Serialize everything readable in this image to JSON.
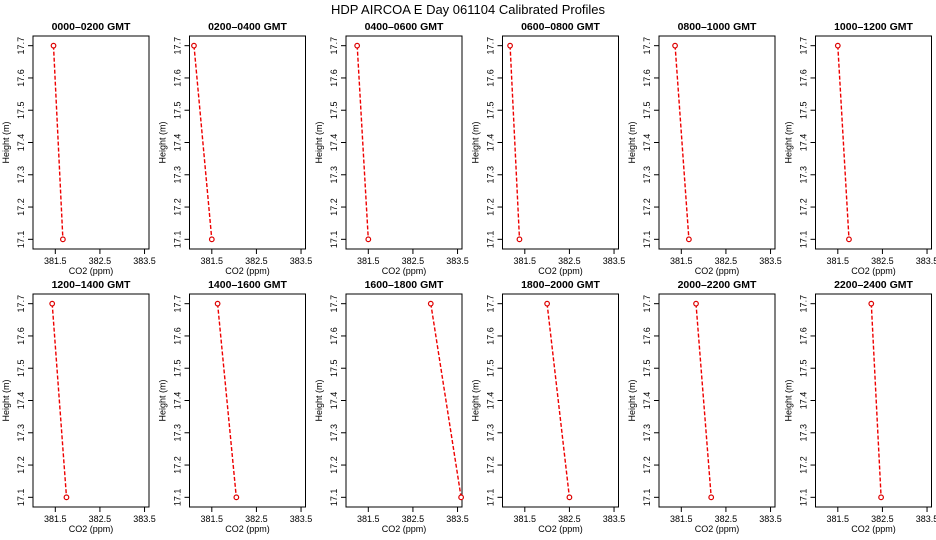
{
  "title": "HDP  AIRCOA E  Day 061104  Calibrated Profiles",
  "colors": {
    "series": "#ee0000",
    "marker": "#dd0000",
    "axes": "#000000"
  },
  "chart_data": [
    {
      "type": "line",
      "title": "0000–0200 GMT",
      "xlabel": "CO2 (ppm)",
      "ylabel": "Height (m)",
      "xlim": [
        381.0,
        383.6
      ],
      "ylim": [
        17.07,
        17.73
      ],
      "xticks": [
        381.5,
        382.5,
        383.5
      ],
      "xtick_labels": [
        "381.5",
        "382.5",
        "383.5"
      ],
      "yticks": [
        17.1,
        17.2,
        17.3,
        17.4,
        17.5,
        17.6,
        17.7
      ],
      "ytick_labels": [
        "17.1",
        "17.2",
        "17.3",
        "17.4",
        "17.5",
        "17.6",
        "17.7"
      ],
      "points": [
        {
          "x": 381.46,
          "y": 17.7
        },
        {
          "x": 381.67,
          "y": 17.1
        }
      ]
    },
    {
      "type": "line",
      "title": "0200–0400 GMT",
      "xlabel": "CO2 (ppm)",
      "ylabel": "Height (m)",
      "xlim": [
        381.0,
        383.6
      ],
      "ylim": [
        17.07,
        17.73
      ],
      "xticks": [
        381.5,
        382.5,
        383.5
      ],
      "xtick_labels": [
        "381.5",
        "382.5",
        "383.5"
      ],
      "yticks": [
        17.1,
        17.2,
        17.3,
        17.4,
        17.5,
        17.6,
        17.7
      ],
      "ytick_labels": [
        "17.1",
        "17.2",
        "17.3",
        "17.4",
        "17.5",
        "17.6",
        "17.7"
      ],
      "points": [
        {
          "x": 381.1,
          "y": 17.7
        },
        {
          "x": 381.5,
          "y": 17.1
        }
      ]
    },
    {
      "type": "line",
      "title": "0400–0600 GMT",
      "xlabel": "CO2 (ppm)",
      "ylabel": "Height (m)",
      "xlim": [
        381.0,
        383.6
      ],
      "ylim": [
        17.07,
        17.73
      ],
      "xticks": [
        381.5,
        382.5,
        383.5
      ],
      "xtick_labels": [
        "381.5",
        "382.5",
        "383.5"
      ],
      "yticks": [
        17.1,
        17.2,
        17.3,
        17.4,
        17.5,
        17.6,
        17.7
      ],
      "ytick_labels": [
        "17.1",
        "17.2",
        "17.3",
        "17.4",
        "17.5",
        "17.6",
        "17.7"
      ],
      "points": [
        {
          "x": 381.25,
          "y": 17.7
        },
        {
          "x": 381.5,
          "y": 17.1
        }
      ]
    },
    {
      "type": "line",
      "title": "0600–0800 GMT",
      "xlabel": "CO2 (ppm)",
      "ylabel": "Height (m)",
      "xlim": [
        381.0,
        383.6
      ],
      "ylim": [
        17.07,
        17.73
      ],
      "xticks": [
        381.5,
        382.5,
        383.5
      ],
      "xtick_labels": [
        "381.5",
        "382.5",
        "383.5"
      ],
      "yticks": [
        17.1,
        17.2,
        17.3,
        17.4,
        17.5,
        17.6,
        17.7
      ],
      "ytick_labels": [
        "17.1",
        "17.2",
        "17.3",
        "17.4",
        "17.5",
        "17.6",
        "17.7"
      ],
      "points": [
        {
          "x": 381.17,
          "y": 17.7
        },
        {
          "x": 381.38,
          "y": 17.1
        }
      ]
    },
    {
      "type": "line",
      "title": "0800–1000 GMT",
      "xlabel": "CO2 (ppm)",
      "ylabel": "Height (m)",
      "xlim": [
        381.0,
        383.6
      ],
      "ylim": [
        17.07,
        17.73
      ],
      "xticks": [
        381.5,
        382.5,
        383.5
      ],
      "xtick_labels": [
        "381.5",
        "382.5",
        "383.5"
      ],
      "yticks": [
        17.1,
        17.2,
        17.3,
        17.4,
        17.5,
        17.6,
        17.7
      ],
      "ytick_labels": [
        "17.1",
        "17.2",
        "17.3",
        "17.4",
        "17.5",
        "17.6",
        "17.7"
      ],
      "points": [
        {
          "x": 381.36,
          "y": 17.7
        },
        {
          "x": 381.67,
          "y": 17.1
        }
      ]
    },
    {
      "type": "line",
      "title": "1000–1200 GMT",
      "xlabel": "CO2 (ppm)",
      "ylabel": "Height (m)",
      "xlim": [
        381.0,
        383.6
      ],
      "ylim": [
        17.07,
        17.73
      ],
      "xticks": [
        381.5,
        382.5,
        383.5
      ],
      "xtick_labels": [
        "381.5",
        "382.5",
        "383.5"
      ],
      "yticks": [
        17.1,
        17.2,
        17.3,
        17.4,
        17.5,
        17.6,
        17.7
      ],
      "ytick_labels": [
        "17.1",
        "17.2",
        "17.3",
        "17.4",
        "17.5",
        "17.6",
        "17.7"
      ],
      "points": [
        {
          "x": 381.5,
          "y": 17.7
        },
        {
          "x": 381.75,
          "y": 17.1
        }
      ]
    },
    {
      "type": "line",
      "title": "1200–1400 GMT",
      "xlabel": "CO2 (ppm)",
      "ylabel": "Height (m)",
      "xlim": [
        381.0,
        383.6
      ],
      "ylim": [
        17.07,
        17.73
      ],
      "xticks": [
        381.5,
        382.5,
        383.5
      ],
      "xtick_labels": [
        "381.5",
        "382.5",
        "383.5"
      ],
      "yticks": [
        17.1,
        17.2,
        17.3,
        17.4,
        17.5,
        17.6,
        17.7
      ],
      "ytick_labels": [
        "17.1",
        "17.2",
        "17.3",
        "17.4",
        "17.5",
        "17.6",
        "17.7"
      ],
      "points": [
        {
          "x": 381.43,
          "y": 17.7
        },
        {
          "x": 381.75,
          "y": 17.1
        }
      ]
    },
    {
      "type": "line",
      "title": "1400–1600 GMT",
      "xlabel": "CO2 (ppm)",
      "ylabel": "Height (m)",
      "xlim": [
        381.0,
        383.6
      ],
      "ylim": [
        17.07,
        17.73
      ],
      "xticks": [
        381.5,
        382.5,
        383.5
      ],
      "xtick_labels": [
        "381.5",
        "382.5",
        "383.5"
      ],
      "yticks": [
        17.1,
        17.2,
        17.3,
        17.4,
        17.5,
        17.6,
        17.7
      ],
      "ytick_labels": [
        "17.1",
        "17.2",
        "17.3",
        "17.4",
        "17.5",
        "17.6",
        "17.7"
      ],
      "points": [
        {
          "x": 381.63,
          "y": 17.7
        },
        {
          "x": 382.05,
          "y": 17.1
        }
      ]
    },
    {
      "type": "line",
      "title": "1600–1800 GMT",
      "xlabel": "CO2 (ppm)",
      "ylabel": "Height (m)",
      "xlim": [
        381.0,
        383.6
      ],
      "ylim": [
        17.07,
        17.73
      ],
      "xticks": [
        381.5,
        382.5,
        383.5
      ],
      "xtick_labels": [
        "381.5",
        "382.5",
        "383.5"
      ],
      "yticks": [
        17.1,
        17.2,
        17.3,
        17.4,
        17.5,
        17.6,
        17.7
      ],
      "ytick_labels": [
        "17.1",
        "17.2",
        "17.3",
        "17.4",
        "17.5",
        "17.6",
        "17.7"
      ],
      "points": [
        {
          "x": 382.9,
          "y": 17.7
        },
        {
          "x": 383.58,
          "y": 17.1
        }
      ]
    },
    {
      "type": "line",
      "title": "1800–2000 GMT",
      "xlabel": "CO2 (ppm)",
      "ylabel": "Height (m)",
      "xlim": [
        381.0,
        383.6
      ],
      "ylim": [
        17.07,
        17.73
      ],
      "xticks": [
        381.5,
        382.5,
        383.5
      ],
      "xtick_labels": [
        "381.5",
        "382.5",
        "383.5"
      ],
      "yticks": [
        17.1,
        17.2,
        17.3,
        17.4,
        17.5,
        17.6,
        17.7
      ],
      "ytick_labels": [
        "17.1",
        "17.2",
        "17.3",
        "17.4",
        "17.5",
        "17.6",
        "17.7"
      ],
      "points": [
        {
          "x": 382.0,
          "y": 17.7
        },
        {
          "x": 382.5,
          "y": 17.1
        }
      ]
    },
    {
      "type": "line",
      "title": "2000–2200 GMT",
      "xlabel": "CO2 (ppm)",
      "ylabel": "Height (m)",
      "xlim": [
        381.0,
        383.6
      ],
      "ylim": [
        17.07,
        17.73
      ],
      "xticks": [
        381.5,
        382.5,
        383.5
      ],
      "xtick_labels": [
        "381.5",
        "382.5",
        "383.5"
      ],
      "yticks": [
        17.1,
        17.2,
        17.3,
        17.4,
        17.5,
        17.6,
        17.7
      ],
      "ytick_labels": [
        "17.1",
        "17.2",
        "17.3",
        "17.4",
        "17.5",
        "17.6",
        "17.7"
      ],
      "points": [
        {
          "x": 381.83,
          "y": 17.7
        },
        {
          "x": 382.17,
          "y": 17.1
        }
      ]
    },
    {
      "type": "line",
      "title": "2200–2400 GMT",
      "xlabel": "CO2 (ppm)",
      "ylabel": "Height (m)",
      "xlim": [
        381.0,
        383.6
      ],
      "ylim": [
        17.07,
        17.73
      ],
      "xticks": [
        381.5,
        382.5,
        383.5
      ],
      "xtick_labels": [
        "381.5",
        "382.5",
        "383.5"
      ],
      "yticks": [
        17.1,
        17.2,
        17.3,
        17.4,
        17.5,
        17.6,
        17.7
      ],
      "ytick_labels": [
        "17.1",
        "17.2",
        "17.3",
        "17.4",
        "17.5",
        "17.6",
        "17.7"
      ],
      "points": [
        {
          "x": 382.25,
          "y": 17.7
        },
        {
          "x": 382.47,
          "y": 17.1
        }
      ]
    }
  ]
}
